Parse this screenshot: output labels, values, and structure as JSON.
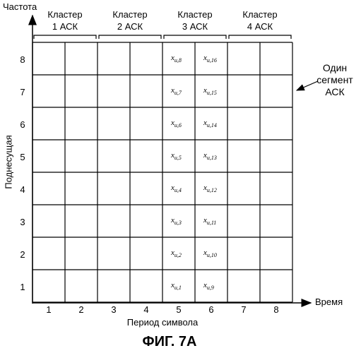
{
  "axis": {
    "y_title": "Частота",
    "y_label": "Поднесущая",
    "x_title": "Время",
    "x_label": "Период символа",
    "y_ticks": [
      "1",
      "2",
      "3",
      "4",
      "5",
      "6",
      "7",
      "8"
    ],
    "x_ticks": [
      "1",
      "2",
      "3",
      "4",
      "5",
      "6",
      "7",
      "8"
    ]
  },
  "clusters": [
    {
      "word": "Кластер",
      "name": "1 АСК"
    },
    {
      "word": "Кластер",
      "name": "2 АСК"
    },
    {
      "word": "Кластер",
      "name": "3 АСК"
    },
    {
      "word": "Кластер",
      "name": "4 АСК"
    }
  ],
  "segment_callout": [
    "Один",
    "сегмент",
    "АСК"
  ],
  "cell_symbol": "x",
  "cell_subscript_prefix": "u,",
  "col5_indices": [
    "1",
    "2",
    "3",
    "4",
    "5",
    "6",
    "7",
    "8"
  ],
  "col6_indices": [
    "9",
    "10",
    "11",
    "12",
    "13",
    "14",
    "15",
    "16"
  ],
  "caption": "ФИГ. 7А"
}
